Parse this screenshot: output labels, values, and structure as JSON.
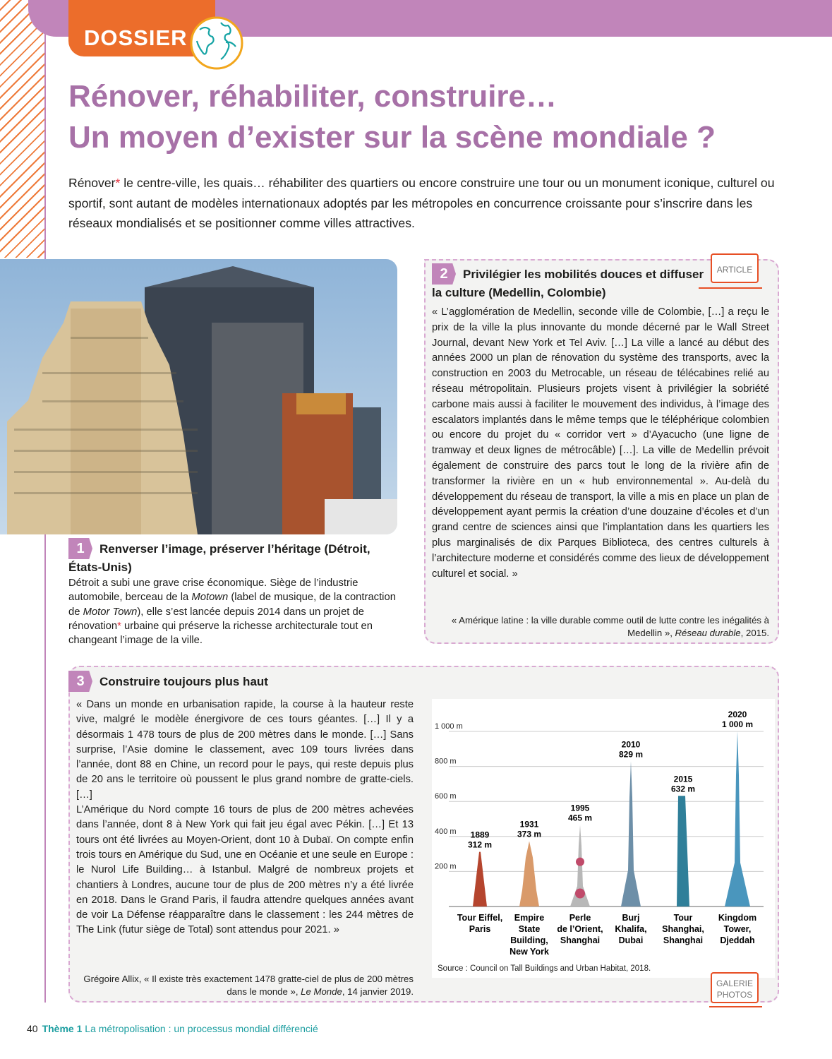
{
  "header": {
    "tab_label": "DOSSIER",
    "title_line1": "Rénover, réhabiliter, construire…",
    "title_line2": "Un moyen d’exister sur la scène mondiale ?"
  },
  "intro": {
    "word": "Rénover",
    "star": "*",
    "rest": " le centre-ville, les quais… réhabiliter des quartiers ou encore construire une tour ou un monument iconique, culturel ou sportif, sont autant de modèles internationaux adoptés par les métropoles en concurrence croissante pour s’inscrire dans les réseaux mondialisés et se positionner comme villes attractives."
  },
  "doc1": {
    "num": "1",
    "title": "Renverser l’image, préserver l’héritage (Détroit, États-Unis)",
    "text_a": "Détroit a subi une grave crise économique. Siège de l’industrie automobile, berceau de la ",
    "motown": "Motown",
    "text_b": " (label de musique, de la contraction de ",
    "motortown": "Motor Town",
    "text_c": "), elle s’est lancée depuis 2014 dans un projet de rénovation",
    "star": "*",
    "text_d": " urbaine qui préserve la richesse architecturale tout en changeant l’image de la ville."
  },
  "doc2": {
    "num": "2",
    "title": "Privilégier les mobilités douces et diffuser la culture (Medellin, Colombie)",
    "tag": "ARTICLE",
    "text": "« L’agglomération de Medellin, seconde ville de Colombie, […] a reçu le prix de la ville la plus innovante du monde décerné par le Wall Street Journal, devant New York et Tel Aviv. […] La ville a lancé au début des années 2000 un plan de rénovation du système des transports, avec la construction en 2003 du Metrocable, un réseau de télécabines relié au réseau métropolitain. Plusieurs projets visent à privilégier la sobriété carbone mais aussi à faciliter le mouvement des individus, à l’image des escalators implantés dans le même temps que le téléphérique colombien ou encore du projet du « corridor vert » d’Ayacucho (une ligne de tramway et deux lignes de métrocâble) […]. La ville de Medellin prévoit également de construire des parcs tout le long de la rivière afin de transformer la rivière en un « hub environnemental ». Au-delà du développement du réseau de transport, la ville a mis en place un plan de développement ayant permis la création d’une douzaine d’écoles et d’un grand centre de sciences ainsi que l’implantation dans les quartiers les plus marginalisés de dix Parques Biblioteca, des centres culturels à l’architecture moderne et considérés comme des lieux de développement culturel et social. »",
    "src_a": "« Amérique latine : la ville durable comme outil de lutte contre les inégalités à Medellin », ",
    "src_journal": "Réseau durable",
    "src_b": ", 2015."
  },
  "doc3": {
    "num": "3",
    "title": "Construire toujours plus haut",
    "tag": "GALERIE PHOTOS",
    "text_p1": "« Dans un monde en urbanisation rapide, la course à la hauteur reste vive, malgré le modèle énergivore de ces tours géantes. […] Il y a désormais 1 478 tours de plus de 200 mètres dans le monde. […] Sans surprise, l’Asie domine le classement, avec 109 tours livrées dans l’année, dont 88 en Chine, un record pour le pays, qui reste depuis plus de 20 ans le territoire où poussent le plus grand nombre de gratte-ciels. […]",
    "text_p2": "L’Amérique du Nord compte 16 tours de plus de 200 mètres achevées dans l’année, dont 8 à New York qui fait jeu égal avec Pékin. […] Et 13 tours ont été livrées au Moyen-Orient, dont 10 à Dubaï. On compte enfin trois tours en Amérique du Sud, une en Océanie et une seule en Europe : le Nurol Life Building… à Istanbul. Malgré de nombreux projets et chantiers à Londres, aucune tour de plus de 200 mètres n’y a été livrée en 2018. Dans le Grand Paris, il faudra attendre quelques années avant de voir La Défense réapparaître dans le classement : les 244 mètres de The Link (futur siège de Total) sont attendus pour 2021. »",
    "src_a": "Grégoire Allix, « Il existe très exactement 1478 gratte-ciel de plus de 200 mètres dans le monde », ",
    "src_journal": "Le Monde",
    "src_b": ", 14 janvier 2019."
  },
  "chart_data": {
    "type": "bar",
    "ylim": [
      0,
      1000
    ],
    "yticks": [
      "200 m",
      "400 m",
      "600 m",
      "800 m",
      "1 000 m"
    ],
    "ytick_values": [
      200,
      400,
      600,
      800,
      1000
    ],
    "categories": [
      "Tour Eiffel, Paris",
      "Empire State Building, New York",
      "Perle de l’Orient, Shanghai",
      "Burj Khalifa, Dubai",
      "Tour Shanghai, Shanghai",
      "Kingdom Tower, Djeddah"
    ],
    "years": [
      "1889",
      "1931",
      "1995",
      "2010",
      "2015",
      "2020"
    ],
    "values": [
      312,
      373,
      465,
      829,
      632,
      1000
    ],
    "value_labels": [
      "312 m",
      "373 m",
      "465 m",
      "829 m",
      "632 m",
      "1 000 m"
    ],
    "colors": [
      "#b5452e",
      "#d99a6a",
      "#b8b8b8",
      "#6d8fa8",
      "#2f7f99",
      "#4a96bd"
    ],
    "source": "Source : Council on Tall Buildings and Urban Habitat, 2018."
  },
  "footer": {
    "page": "40",
    "theme": "Thème 1",
    "text": " La métropolisation : un processus mondial différencié"
  }
}
